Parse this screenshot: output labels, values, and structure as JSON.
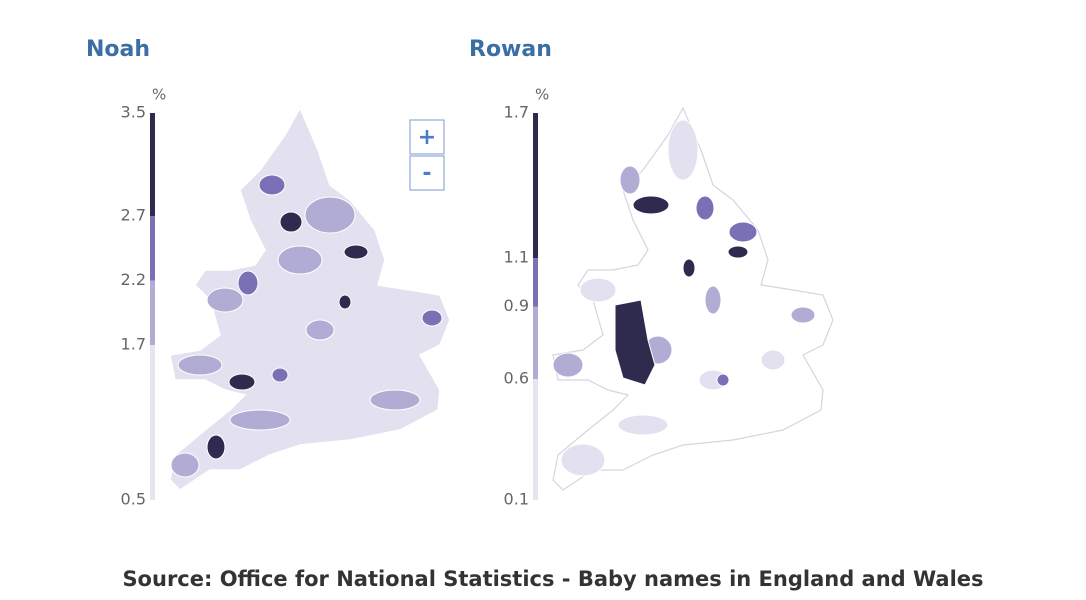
{
  "maps": [
    {
      "title": "Noah",
      "unit": "%",
      "legend": {
        "ticks": [
          3.5,
          2.7,
          2.2,
          1.7,
          0.5
        ],
        "colors": [
          "#2f2b4f",
          "#7a70b5",
          "#b1acd3",
          "#e6e4f1"
        ]
      }
    },
    {
      "title": "Rowan",
      "unit": "%",
      "legend": {
        "ticks": [
          1.7,
          1.1,
          0.9,
          0.6,
          0.1
        ],
        "colors": [
          "#2f2b4f",
          "#7a70b5",
          "#b1acd3",
          "#e6e4f1"
        ]
      }
    }
  ],
  "zoom": {
    "in": "+",
    "out": "-"
  },
  "source": "Source: Office for National Statistics - Baby names in England and Wales"
}
